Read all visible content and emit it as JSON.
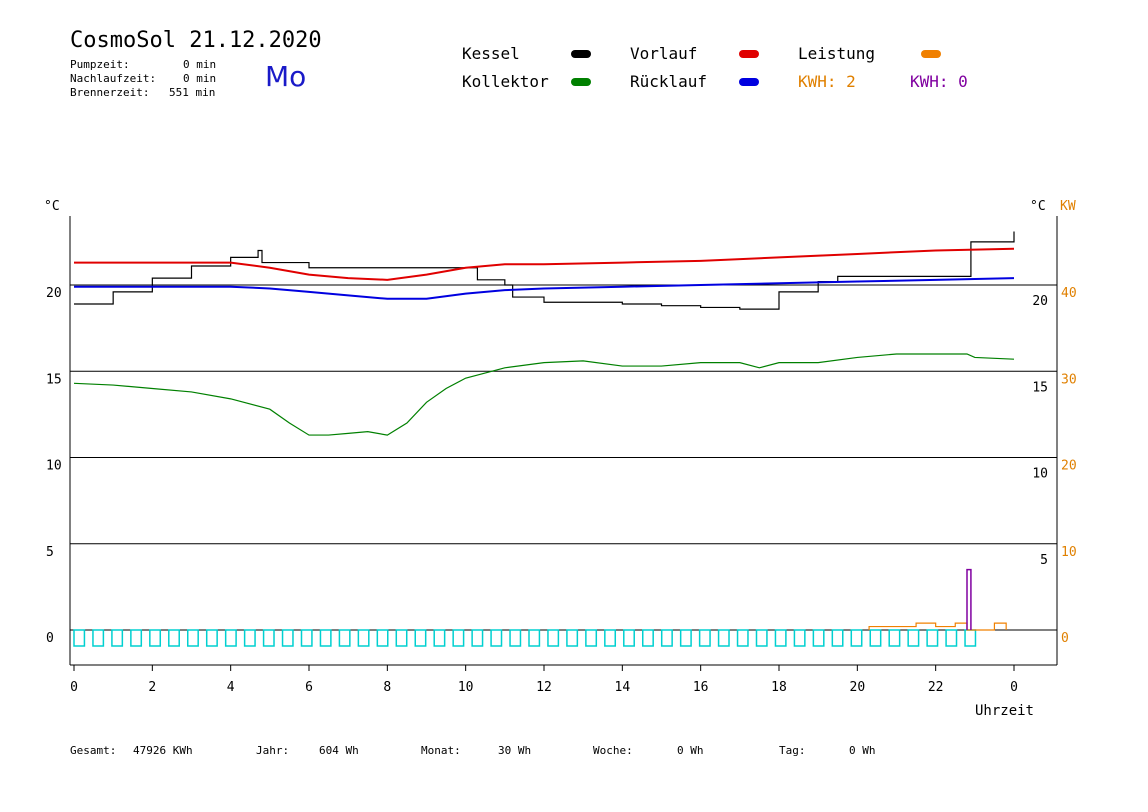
{
  "header": {
    "title": "CosmoSol 21.12.2020",
    "day": "Mo",
    "stats": [
      {
        "label": "Pumpzeit:",
        "value": "0 min"
      },
      {
        "label": "Nachlaufzeit:",
        "value": "0 min"
      },
      {
        "label": "Brennerzeit:",
        "value": "551 min"
      }
    ]
  },
  "legend": {
    "items": [
      {
        "label": "Kessel",
        "color": "#000000"
      },
      {
        "label": "Vorlauf",
        "color": "#e00000"
      },
      {
        "label": "Leistung",
        "color": "#f08000"
      },
      {
        "label": "Kollektor",
        "color": "#008000"
      },
      {
        "label": "Rücklauf",
        "color": "#0000e0"
      }
    ],
    "kwh_a": {
      "text": "KWH: 2",
      "color": "#e08000"
    },
    "kwh_b": {
      "text": "KWH: 0",
      "color": "#8000a0"
    }
  },
  "footer": {
    "items": [
      {
        "label": "Gesamt:",
        "value": "47926 KWh"
      },
      {
        "label": "Jahr:",
        "value": "604 Wh"
      },
      {
        "label": "Monat:",
        "value": "30 Wh"
      },
      {
        "label": "Woche:",
        "value": "0 Wh"
      },
      {
        "label": "Tag:",
        "value": "0 Wh"
      }
    ]
  },
  "chart_data": {
    "type": "line",
    "xlabel": "Uhrzeit",
    "ylabel_left": "°C",
    "ylabel_right": "°C",
    "ylabel_right2": "KW",
    "x_ticks": [
      "0",
      "2",
      "4",
      "6",
      "8",
      "10",
      "12",
      "14",
      "16",
      "18",
      "20",
      "22",
      "0"
    ],
    "x_range": [
      0,
      24
    ],
    "y_range": [
      -1.5,
      24.5
    ],
    "y_ticks_left": [
      "20",
      "15",
      "10",
      "5",
      "0"
    ],
    "y_ticks_right": [
      "20",
      "15",
      "10",
      "5"
    ],
    "y_ticks_kw": [
      "40",
      "30",
      "20",
      "10",
      "0"
    ],
    "grid": "horizontal",
    "series": [
      {
        "name": "Kessel",
        "color": "#000000",
        "points": [
          [
            0,
            18.9
          ],
          [
            1,
            19.6
          ],
          [
            2,
            20.4
          ],
          [
            3,
            21.1
          ],
          [
            4,
            21.6
          ],
          [
            4.7,
            22.0
          ],
          [
            4.8,
            21.3
          ],
          [
            6,
            21.0
          ],
          [
            8,
            21.0
          ],
          [
            10,
            21.0
          ],
          [
            10.3,
            20.3
          ],
          [
            11,
            20.0
          ],
          [
            11.2,
            19.3
          ],
          [
            12,
            19.0
          ],
          [
            14,
            18.9
          ],
          [
            15,
            18.8
          ],
          [
            16,
            18.7
          ],
          [
            17,
            18.6
          ],
          [
            18,
            19.6
          ],
          [
            19,
            20.2
          ],
          [
            19.5,
            20.5
          ],
          [
            21,
            20.5
          ],
          [
            22.8,
            20.5
          ],
          [
            22.9,
            22.5
          ],
          [
            24,
            23.1
          ]
        ]
      },
      {
        "name": "Vorlauf",
        "color": "#e00000",
        "points": [
          [
            0,
            21.3
          ],
          [
            2,
            21.3
          ],
          [
            4,
            21.3
          ],
          [
            5,
            21.0
          ],
          [
            6,
            20.6
          ],
          [
            7,
            20.4
          ],
          [
            8,
            20.3
          ],
          [
            9,
            20.6
          ],
          [
            10,
            21.0
          ],
          [
            11,
            21.2
          ],
          [
            12,
            21.2
          ],
          [
            14,
            21.3
          ],
          [
            16,
            21.4
          ],
          [
            18,
            21.6
          ],
          [
            20,
            21.8
          ],
          [
            22,
            22.0
          ],
          [
            24,
            22.1
          ]
        ]
      },
      {
        "name": "Rücklauf",
        "color": "#0000e0",
        "points": [
          [
            0,
            19.9
          ],
          [
            2,
            19.9
          ],
          [
            4,
            19.9
          ],
          [
            5,
            19.8
          ],
          [
            6,
            19.6
          ],
          [
            7,
            19.4
          ],
          [
            8,
            19.2
          ],
          [
            9,
            19.2
          ],
          [
            10,
            19.5
          ],
          [
            11,
            19.7
          ],
          [
            12,
            19.8
          ],
          [
            14,
            19.9
          ],
          [
            16,
            20.0
          ],
          [
            18,
            20.1
          ],
          [
            20,
            20.2
          ],
          [
            22,
            20.3
          ],
          [
            24,
            20.4
          ]
        ]
      },
      {
        "name": "Kollektor",
        "color": "#008000",
        "points": [
          [
            0,
            14.3
          ],
          [
            1,
            14.2
          ],
          [
            2,
            14.0
          ],
          [
            3,
            13.8
          ],
          [
            4,
            13.4
          ],
          [
            5,
            12.8
          ],
          [
            5.5,
            12.0
          ],
          [
            6,
            11.3
          ],
          [
            6.5,
            11.3
          ],
          [
            7,
            11.4
          ],
          [
            7.5,
            11.5
          ],
          [
            8,
            11.3
          ],
          [
            8.5,
            12.0
          ],
          [
            9,
            13.2
          ],
          [
            9.5,
            14.0
          ],
          [
            10,
            14.6
          ],
          [
            11,
            15.2
          ],
          [
            12,
            15.5
          ],
          [
            13,
            15.6
          ],
          [
            14,
            15.3
          ],
          [
            15,
            15.3
          ],
          [
            16,
            15.5
          ],
          [
            17,
            15.5
          ],
          [
            17.5,
            15.2
          ],
          [
            18,
            15.5
          ],
          [
            19,
            15.5
          ],
          [
            20,
            15.8
          ],
          [
            21,
            16.0
          ],
          [
            22,
            16.0
          ],
          [
            22.8,
            16.0
          ],
          [
            23,
            15.8
          ],
          [
            24,
            15.7
          ]
        ]
      },
      {
        "name": "Leistung",
        "color": "#f08000",
        "points": [
          [
            20.3,
            0
          ],
          [
            20.3,
            0.2
          ],
          [
            21,
            0.2
          ],
          [
            21.5,
            0.2
          ],
          [
            21.5,
            0.4
          ],
          [
            22,
            0.4
          ],
          [
            22,
            0.2
          ],
          [
            22.5,
            0.2
          ],
          [
            22.5,
            0.4
          ],
          [
            22.8,
            0.4
          ],
          [
            22.8,
            0
          ],
          [
            23,
            0
          ],
          [
            23.5,
            0.4
          ],
          [
            23.8,
            0.4
          ],
          [
            23.8,
            0
          ]
        ]
      }
    ],
    "spike": {
      "color": "#8000a0",
      "x": 22.85,
      "value": 3.5
    },
    "pump_cycles": {
      "color": "#00d0d0",
      "count": 48
    }
  }
}
